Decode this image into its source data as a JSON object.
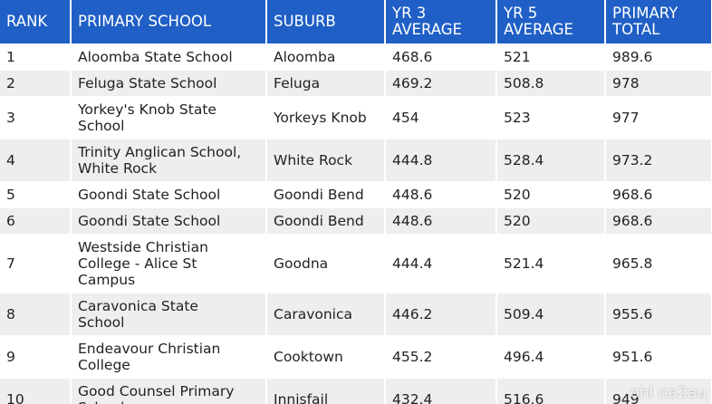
{
  "table": {
    "header": [
      "RANK",
      "PRIMARY SCHOOL",
      "SUBURB",
      "YR 3 AVERAGE",
      "YR 5 AVERAGE",
      "PRIMARY TOTAL"
    ],
    "rows": [
      [
        "1",
        "Aloomba State School",
        "Aloomba",
        "468.6",
        "521",
        "989.6"
      ],
      [
        "2",
        "Feluga State School",
        "Feluga",
        "469.2",
        "508.8",
        "978"
      ],
      [
        "3",
        "Yorkey's Knob State School",
        "Yorkeys Knob",
        "454",
        "523",
        "977"
      ],
      [
        "4",
        "Trinity Anglican School, White Rock",
        "White Rock",
        "444.8",
        "528.4",
        "973.2"
      ],
      [
        "5",
        "Goondi State School",
        "Goondi Bend",
        "448.6",
        "520",
        "968.6"
      ],
      [
        "6",
        "Goondi State School",
        "Goondi Bend",
        "448.6",
        "520",
        "968.6"
      ],
      [
        "7",
        "Westside Christian College - Alice St Campus",
        "Goodna",
        "444.4",
        "521.4",
        "965.8"
      ],
      [
        "8",
        "Caravonica State School",
        "Caravonica",
        "446.2",
        "509.4",
        "955.6"
      ],
      [
        "9",
        "Endeavour Christian College",
        "Cooktown",
        "455.2",
        "496.4",
        "951.6"
      ],
      [
        "10",
        "Good Counsel Primary School",
        "Innisfail",
        "432.4",
        "516.6",
        "949"
      ]
    ]
  },
  "watermark": "ohl na2au"
}
